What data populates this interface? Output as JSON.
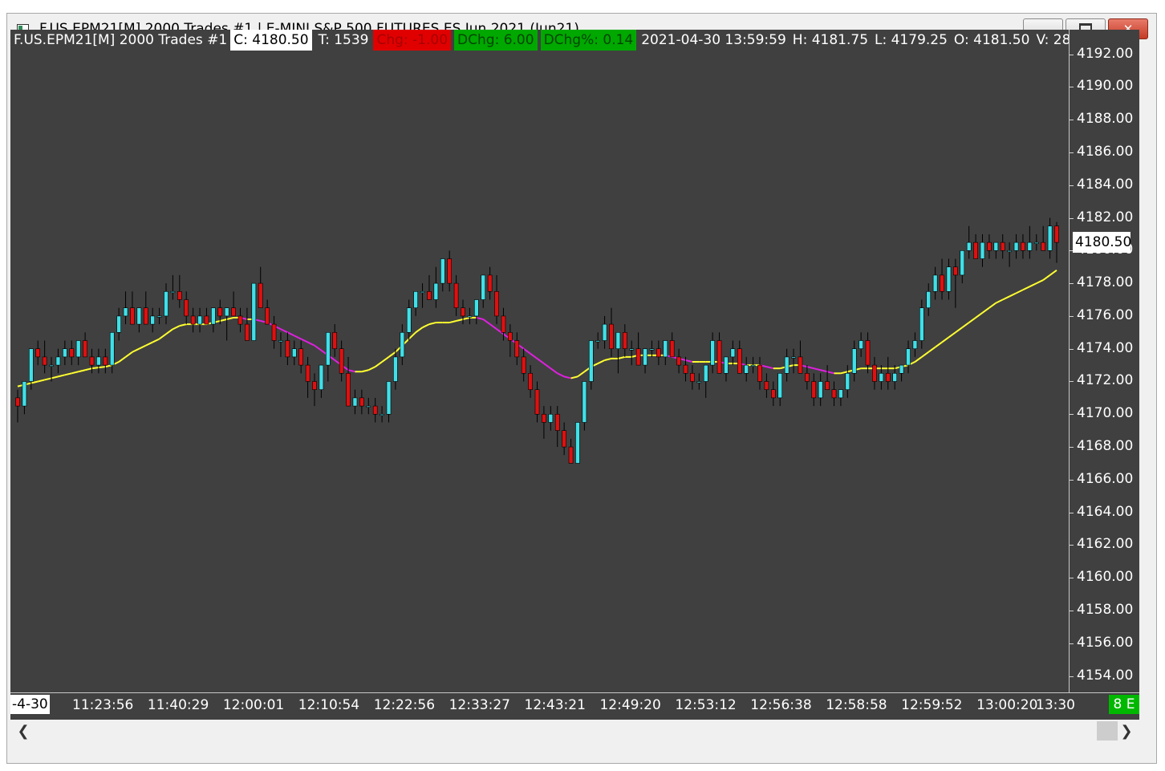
{
  "window": {
    "title": "F.US.EPM21[M]  2000 Trades  #1 | E-MINI S&P 500 FUTURES ES Jun 2021 (Jun21)",
    "buttons": {
      "minimize": "minimize-icon",
      "maximize": "maximize-icon",
      "close": "close-icon"
    }
  },
  "header": {
    "symbol": "F.US.EPM21[M]  2000 Trades  #1",
    "close": "C: 4180.50",
    "trades": "T: 1539",
    "chg": "Chg: -1.00",
    "dchg": "DChg: 6.00",
    "dchg_pct": "DChg%: 0.14",
    "datetime": "2021-04-30 13:59:59",
    "high": "H: 4181.75",
    "low": "L: 4179.25",
    "open": "O: 4181.50",
    "volume": "V: 28"
  },
  "colors": {
    "background": "#404040",
    "up_candle": "#40e0e8",
    "down_candle": "#e01010",
    "ma_up": "#ffff30",
    "ma_down": "#e020e0",
    "chg_bg": "#e00000",
    "dchg_bg": "#00a800"
  },
  "price_axis": {
    "labels": [
      "4192.00",
      "4190.00",
      "4188.00",
      "4186.00",
      "4184.00",
      "4182.00",
      "4180.00",
      "4178.00",
      "4176.00",
      "4174.00",
      "4172.00",
      "4170.00",
      "4168.00",
      "4166.00",
      "4164.00",
      "4162.00",
      "4160.00",
      "4158.00",
      "4156.00",
      "4154.00"
    ],
    "current": "4180.50"
  },
  "time_axis": {
    "first": "-4-30",
    "labels": [
      "11:23:56",
      "11:40:29",
      "12:00:01",
      "12:10:54",
      "12:22:56",
      "12:33:27",
      "12:43:21",
      "12:49:20",
      "12:53:12",
      "12:56:38",
      "12:58:58",
      "12:59:52",
      "13:00:20",
      "13:30"
    ],
    "badge": "8 E"
  },
  "chart_data": {
    "type": "candlestick",
    "ylim": [
      4153,
      4193.5
    ],
    "candles": [
      [
        4171.0,
        4171.5,
        4169.5,
        4170.5
      ],
      [
        4170.5,
        4172.0,
        4170.0,
        4172.0
      ],
      [
        4172.0,
        4174.0,
        4171.5,
        4174.0
      ],
      [
        4174.0,
        4174.5,
        4173.0,
        4173.5
      ],
      [
        4173.5,
        4174.5,
        4172.5,
        4173.0
      ],
      [
        4173.0,
        4173.5,
        4172.0,
        4173.0
      ],
      [
        4173.0,
        4174.0,
        4172.5,
        4173.5
      ],
      [
        4173.5,
        4174.5,
        4173.0,
        4174.0
      ],
      [
        4174.0,
        4174.5,
        4173.0,
        4173.5
      ],
      [
        4173.5,
        4174.5,
        4173.0,
        4174.5
      ],
      [
        4174.5,
        4175.0,
        4173.5,
        4173.5
      ],
      [
        4173.5,
        4174.0,
        4172.5,
        4173.0
      ],
      [
        4173.0,
        4174.0,
        4172.5,
        4173.5
      ],
      [
        4173.5,
        4174.0,
        4172.5,
        4173.0
      ],
      [
        4173.0,
        4175.0,
        4172.5,
        4175.0
      ],
      [
        4175.0,
        4176.5,
        4174.5,
        4176.0
      ],
      [
        4176.0,
        4177.5,
        4175.5,
        4176.5
      ],
      [
        4176.5,
        4177.5,
        4175.5,
        4175.5
      ],
      [
        4175.5,
        4176.5,
        4175.0,
        4176.5
      ],
      [
        4176.5,
        4177.5,
        4175.5,
        4175.5
      ],
      [
        4175.5,
        4176.5,
        4175.0,
        4176.0
      ],
      [
        4176.0,
        4176.5,
        4175.5,
        4176.0
      ],
      [
        4176.0,
        4178.0,
        4175.5,
        4177.5
      ],
      [
        4177.5,
        4178.5,
        4177.0,
        4177.5
      ],
      [
        4177.5,
        4178.5,
        4176.5,
        4177.0
      ],
      [
        4177.0,
        4177.5,
        4175.5,
        4176.0
      ],
      [
        4176.0,
        4176.5,
        4175.0,
        4175.5
      ],
      [
        4175.5,
        4176.5,
        4175.0,
        4176.0
      ],
      [
        4176.0,
        4176.5,
        4175.5,
        4175.5
      ],
      [
        4175.5,
        4176.5,
        4175.0,
        4176.5
      ],
      [
        4176.5,
        4177.0,
        4175.5,
        4176.0
      ],
      [
        4176.0,
        4176.5,
        4174.5,
        4176.5
      ],
      [
        4176.5,
        4177.5,
        4176.0,
        4176.0
      ],
      [
        4176.0,
        4176.5,
        4175.0,
        4175.5
      ],
      [
        4175.5,
        4176.5,
        4174.5,
        4174.5
      ],
      [
        4174.5,
        4178.0,
        4174.5,
        4178.0
      ],
      [
        4178.0,
        4179.0,
        4176.5,
        4176.5
      ],
      [
        4176.5,
        4177.0,
        4175.5,
        4175.5
      ],
      [
        4175.5,
        4176.0,
        4174.0,
        4174.5
      ],
      [
        4174.5,
        4175.0,
        4173.5,
        4174.5
      ],
      [
        4174.5,
        4175.0,
        4173.0,
        4173.5
      ],
      [
        4173.5,
        4174.5,
        4173.0,
        4174.0
      ],
      [
        4174.0,
        4174.5,
        4172.5,
        4173.0
      ],
      [
        4173.0,
        4173.5,
        4171.0,
        4172.0
      ],
      [
        4172.0,
        4172.5,
        4170.5,
        4171.5
      ],
      [
        4171.5,
        4173.0,
        4171.0,
        4173.0
      ],
      [
        4173.0,
        4175.0,
        4172.0,
        4175.0
      ],
      [
        4175.0,
        4175.5,
        4173.5,
        4174.0
      ],
      [
        4174.0,
        4174.5,
        4172.0,
        4172.5
      ],
      [
        4172.5,
        4173.5,
        4170.5,
        4170.5
      ],
      [
        4170.5,
        4171.5,
        4170.0,
        4171.0
      ],
      [
        4171.0,
        4171.5,
        4170.0,
        4170.5
      ],
      [
        4170.5,
        4171.0,
        4170.0,
        4170.5
      ],
      [
        4170.5,
        4171.0,
        4169.5,
        4170.0
      ],
      [
        4170.0,
        4170.5,
        4169.5,
        4170.0
      ],
      [
        4170.0,
        4172.0,
        4169.5,
        4172.0
      ],
      [
        4172.0,
        4174.0,
        4171.5,
        4173.5
      ],
      [
        4173.5,
        4175.5,
        4173.0,
        4175.0
      ],
      [
        4175.0,
        4177.0,
        4174.5,
        4176.5
      ],
      [
        4176.5,
        4177.5,
        4176.0,
        4177.5
      ],
      [
        4177.5,
        4178.0,
        4176.5,
        4177.5
      ],
      [
        4177.5,
        4178.5,
        4177.0,
        4177.0
      ],
      [
        4177.0,
        4179.0,
        4176.5,
        4178.0
      ],
      [
        4178.0,
        4179.5,
        4177.5,
        4179.5
      ],
      [
        4179.5,
        4180.0,
        4177.5,
        4178.0
      ],
      [
        4178.0,
        4178.5,
        4176.0,
        4176.5
      ],
      [
        4176.5,
        4177.0,
        4175.5,
        4176.0
      ],
      [
        4176.0,
        4176.5,
        4175.5,
        4176.0
      ],
      [
        4176.0,
        4177.0,
        4175.5,
        4177.0
      ],
      [
        4177.0,
        4178.5,
        4176.5,
        4178.5
      ],
      [
        4178.5,
        4179.0,
        4177.0,
        4177.5
      ],
      [
        4177.5,
        4178.5,
        4175.5,
        4176.0
      ],
      [
        4176.0,
        4176.5,
        4174.5,
        4175.0
      ],
      [
        4175.0,
        4175.5,
        4173.5,
        4174.5
      ],
      [
        4174.5,
        4175.0,
        4173.0,
        4173.5
      ],
      [
        4173.5,
        4174.0,
        4172.0,
        4172.5
      ],
      [
        4172.5,
        4173.0,
        4171.0,
        4171.5
      ],
      [
        4171.5,
        4172.0,
        4169.5,
        4170.0
      ],
      [
        4170.0,
        4170.5,
        4168.5,
        4169.5
      ],
      [
        4169.5,
        4170.5,
        4169.0,
        4170.0
      ],
      [
        4170.0,
        4170.5,
        4168.0,
        4169.0
      ],
      [
        4169.0,
        4169.5,
        4167.5,
        4168.0
      ],
      [
        4168.0,
        4168.5,
        4167.0,
        4167.0
      ],
      [
        4167.0,
        4169.5,
        4167.0,
        4169.5
      ],
      [
        4169.5,
        4172.0,
        4169.0,
        4172.0
      ],
      [
        4172.0,
        4174.5,
        4171.5,
        4174.5
      ],
      [
        4174.5,
        4175.0,
        4174.0,
        4174.5
      ],
      [
        4174.5,
        4176.0,
        4174.0,
        4175.5
      ],
      [
        4175.5,
        4176.5,
        4173.5,
        4174.0
      ],
      [
        4174.0,
        4175.0,
        4172.5,
        4175.0
      ],
      [
        4175.0,
        4175.5,
        4173.5,
        4174.0
      ],
      [
        4174.0,
        4174.5,
        4173.0,
        4174.0
      ],
      [
        4174.0,
        4175.0,
        4173.0,
        4173.0
      ],
      [
        4173.0,
        4174.0,
        4172.5,
        4174.0
      ],
      [
        4174.0,
        4174.5,
        4173.5,
        4174.0
      ],
      [
        4174.0,
        4174.5,
        4173.0,
        4173.5
      ],
      [
        4173.5,
        4174.5,
        4173.0,
        4174.5
      ],
      [
        4174.5,
        4175.0,
        4173.5,
        4173.5
      ],
      [
        4173.5,
        4174.0,
        4172.5,
        4173.0
      ],
      [
        4173.0,
        4173.5,
        4172.0,
        4172.5
      ],
      [
        4172.5,
        4173.0,
        4171.5,
        4172.0
      ],
      [
        4172.0,
        4172.5,
        4171.5,
        4172.0
      ],
      [
        4172.0,
        4173.0,
        4171.0,
        4173.0
      ],
      [
        4173.0,
        4175.0,
        4172.5,
        4174.5
      ],
      [
        4174.5,
        4175.0,
        4172.5,
        4172.5
      ],
      [
        4172.5,
        4173.5,
        4172.0,
        4173.5
      ],
      [
        4173.5,
        4174.5,
        4173.0,
        4174.0
      ],
      [
        4174.0,
        4174.5,
        4172.5,
        4172.5
      ],
      [
        4172.5,
        4173.5,
        4172.0,
        4173.0
      ],
      [
        4173.0,
        4173.5,
        4172.5,
        4173.0
      ],
      [
        4173.0,
        4173.5,
        4171.5,
        4172.0
      ],
      [
        4172.0,
        4172.5,
        4171.0,
        4171.5
      ],
      [
        4171.5,
        4172.0,
        4170.5,
        4171.0
      ],
      [
        4171.0,
        4172.5,
        4170.5,
        4172.5
      ],
      [
        4172.5,
        4174.0,
        4172.0,
        4173.5
      ],
      [
        4173.5,
        4174.0,
        4172.5,
        4173.5
      ],
      [
        4173.5,
        4174.5,
        4172.5,
        4172.5
      ],
      [
        4172.5,
        4173.0,
        4171.5,
        4172.0
      ],
      [
        4172.0,
        4172.5,
        4170.5,
        4171.0
      ],
      [
        4171.0,
        4172.5,
        4170.5,
        4172.0
      ],
      [
        4172.0,
        4173.0,
        4171.5,
        4171.5
      ],
      [
        4171.5,
        4172.0,
        4170.5,
        4171.0
      ],
      [
        4171.0,
        4171.5,
        4170.5,
        4171.5
      ],
      [
        4171.5,
        4173.0,
        4171.0,
        4172.5
      ],
      [
        4172.5,
        4174.5,
        4172.0,
        4174.0
      ],
      [
        4174.0,
        4175.0,
        4173.5,
        4174.5
      ],
      [
        4174.5,
        4175.0,
        4172.5,
        4173.0
      ],
      [
        4173.0,
        4173.5,
        4171.5,
        4172.0
      ],
      [
        4172.0,
        4173.0,
        4171.5,
        4172.5
      ],
      [
        4172.5,
        4173.5,
        4171.5,
        4172.0
      ],
      [
        4172.0,
        4173.0,
        4171.5,
        4172.5
      ],
      [
        4172.5,
        4173.0,
        4172.0,
        4173.0
      ],
      [
        4173.0,
        4174.5,
        4172.5,
        4174.0
      ],
      [
        4174.0,
        4175.0,
        4173.5,
        4174.5
      ],
      [
        4174.5,
        4177.0,
        4174.0,
        4176.5
      ],
      [
        4176.5,
        4178.0,
        4176.0,
        4177.5
      ],
      [
        4177.5,
        4179.0,
        4177.0,
        4178.5
      ],
      [
        4178.5,
        4179.5,
        4177.0,
        4177.5
      ],
      [
        4177.5,
        4179.5,
        4177.0,
        4179.0
      ],
      [
        4179.0,
        4179.5,
        4176.5,
        4178.5
      ],
      [
        4178.5,
        4180.0,
        4178.0,
        4180.0
      ],
      [
        4180.0,
        4181.5,
        4179.5,
        4180.5
      ],
      [
        4180.5,
        4181.0,
        4179.5,
        4179.5
      ],
      [
        4179.5,
        4181.0,
        4179.0,
        4180.5
      ],
      [
        4180.5,
        4181.0,
        4179.5,
        4180.0
      ],
      [
        4180.0,
        4180.5,
        4179.5,
        4180.5
      ],
      [
        4180.5,
        4181.0,
        4179.5,
        4180.0
      ],
      [
        4180.0,
        4180.5,
        4179.0,
        4180.0
      ],
      [
        4180.0,
        4181.0,
        4179.5,
        4180.5
      ],
      [
        4180.5,
        4181.0,
        4179.5,
        4180.0
      ],
      [
        4180.0,
        4181.5,
        4179.5,
        4180.5
      ],
      [
        4180.5,
        4181.0,
        4180.0,
        4180.5
      ],
      [
        4180.5,
        4181.5,
        4180.0,
        4180.0
      ],
      [
        4180.0,
        4182.0,
        4179.5,
        4181.5
      ],
      [
        4181.5,
        4181.75,
        4179.25,
        4180.5
      ]
    ],
    "moving_average": [
      4171.7,
      4171.8,
      4171.9,
      4172.0,
      4172.1,
      4172.2,
      4172.3,
      4172.4,
      4172.5,
      4172.6,
      4172.7,
      4172.8,
      4172.85,
      4172.9,
      4173.0,
      4173.2,
      4173.5,
      4173.8,
      4174.0,
      4174.2,
      4174.4,
      4174.6,
      4174.9,
      4175.2,
      4175.4,
      4175.5,
      4175.5,
      4175.5,
      4175.5,
      4175.6,
      4175.7,
      4175.8,
      4175.9,
      4175.9,
      4175.8,
      4175.8,
      4175.7,
      4175.6,
      4175.4,
      4175.2,
      4175.0,
      4174.8,
      4174.6,
      4174.4,
      4174.2,
      4173.9,
      4173.6,
      4173.3,
      4173.0,
      4172.7,
      4172.6,
      4172.6,
      4172.7,
      4172.9,
      4173.2,
      4173.5,
      4173.8,
      4174.2,
      4174.6,
      4175.0,
      4175.3,
      4175.5,
      4175.6,
      4175.6,
      4175.6,
      4175.7,
      4175.8,
      4175.9,
      4175.9,
      4175.8,
      4175.5,
      4175.2,
      4174.9,
      4174.6,
      4174.3,
      4174.0,
      4173.7,
      4173.4,
      4173.1,
      4172.8,
      4172.5,
      4172.3,
      4172.2,
      4172.3,
      4172.6,
      4172.9,
      4173.1,
      4173.3,
      4173.4,
      4173.4,
      4173.5,
      4173.5,
      4173.6,
      4173.6,
      4173.6,
      4173.6,
      4173.6,
      4173.5,
      4173.4,
      4173.3,
      4173.2,
      4173.2,
      4173.2,
      4173.2,
      4173.2,
      4173.1,
      4173.1,
      4173.1,
      4173.0,
      4173.0,
      4173.0,
      4172.9,
      4172.8,
      4172.8,
      4172.9,
      4173.0,
      4173.0,
      4172.9,
      4172.8,
      4172.7,
      4172.6,
      4172.5,
      4172.5,
      4172.6,
      4172.7,
      4172.8,
      4172.8,
      4172.8,
      4172.8,
      4172.8,
      4172.8,
      4172.9,
      4173.0,
      4173.2,
      4173.5,
      4173.8,
      4174.1,
      4174.4,
      4174.7,
      4175.0,
      4175.3,
      4175.6,
      4175.9,
      4176.2,
      4176.5,
      4176.8,
      4177.0,
      4177.2,
      4177.4,
      4177.6,
      4177.8,
      4178.0,
      4178.2,
      4178.5,
      4178.8
    ]
  }
}
